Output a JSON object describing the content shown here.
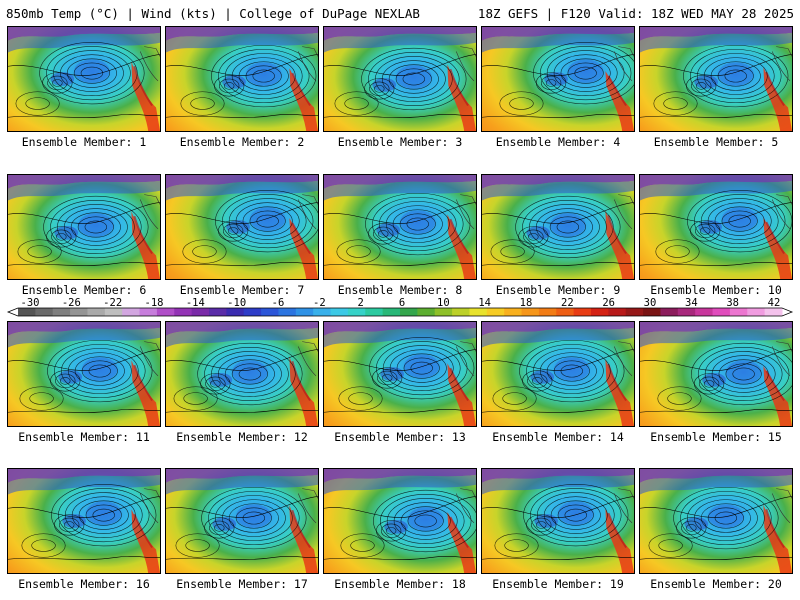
{
  "header": {
    "left": "850mb Temp (°C) | Wind (kts) | College of DuPage NEXLAB",
    "right": "18Z GEFS | F120 Valid: 18Z WED MAY 28 2025"
  },
  "panels": [
    {
      "label": "Ensemble Member: 1"
    },
    {
      "label": "Ensemble Member: 2"
    },
    {
      "label": "Ensemble Member: 3"
    },
    {
      "label": "Ensemble Member: 4"
    },
    {
      "label": "Ensemble Member: 5"
    },
    {
      "label": "Ensemble Member: 6"
    },
    {
      "label": "Ensemble Member: 7"
    },
    {
      "label": "Ensemble Member: 8"
    },
    {
      "label": "Ensemble Member: 9"
    },
    {
      "label": "Ensemble Member: 10"
    },
    {
      "label": "Ensemble Member: 11"
    },
    {
      "label": "Ensemble Member: 12"
    },
    {
      "label": "Ensemble Member: 13"
    },
    {
      "label": "Ensemble Member: 14"
    },
    {
      "label": "Ensemble Member: 15"
    },
    {
      "label": "Ensemble Member: 16"
    },
    {
      "label": "Ensemble Member: 17"
    },
    {
      "label": "Ensemble Member: 18"
    },
    {
      "label": "Ensemble Member: 19"
    },
    {
      "label": "Ensemble Member: 20"
    }
  ],
  "colorbar": {
    "tick_labels": [
      "-30",
      "-26",
      "-22",
      "-18",
      "-14",
      "-10",
      "-6",
      "-2",
      "2",
      "6",
      "10",
      "14",
      "18",
      "22",
      "26",
      "30",
      "34",
      "38",
      "42"
    ],
    "colors": [
      "#555555",
      "#6a6a6a",
      "#7f7f7f",
      "#949494",
      "#a9a9a9",
      "#bebebe",
      "#d2a6e0",
      "#c77ddc",
      "#b04ec8",
      "#9333b5",
      "#7a2aa8",
      "#5a2ca8",
      "#3a2bb0",
      "#2d3cc8",
      "#2b55d8",
      "#2b74e0",
      "#2f92e6",
      "#39b0ea",
      "#3cc9e6",
      "#36d2c8",
      "#2ccaa0",
      "#28b878",
      "#34a64c",
      "#5cae30",
      "#8ec028",
      "#bcd028",
      "#e8e22c",
      "#f6cc24",
      "#f8b01e",
      "#f6961a",
      "#f27c16",
      "#ee5e14",
      "#e83c14",
      "#d42214",
      "#b81a1a",
      "#961818",
      "#7a1414",
      "#8c1c5c",
      "#a8287c",
      "#c8369c",
      "#e04cbc",
      "#ec76d0",
      "#f09ce0",
      "#f4c2ec"
    ]
  }
}
